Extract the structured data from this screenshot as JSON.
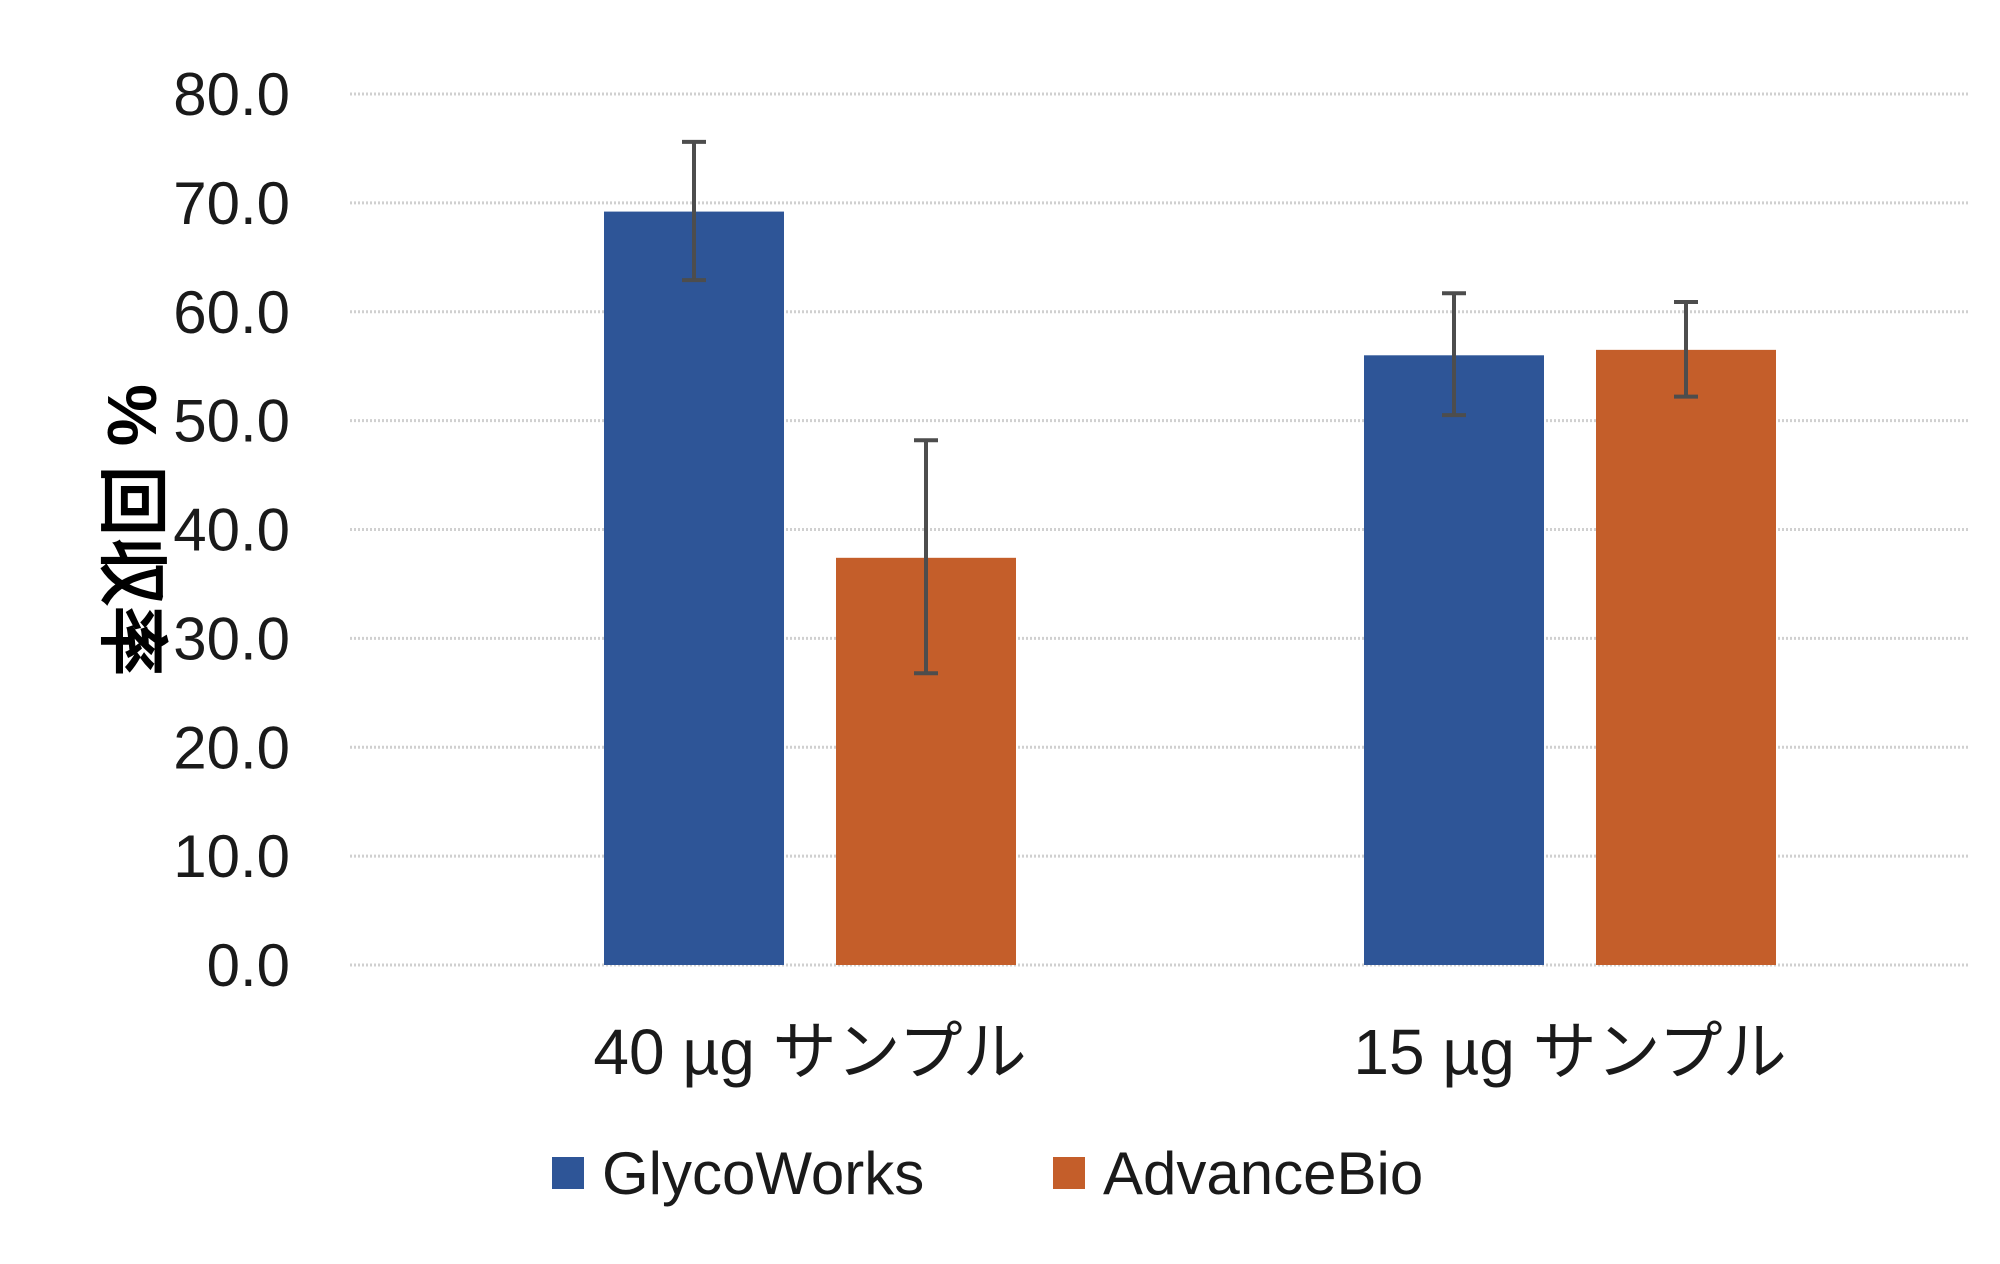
{
  "chart_data": {
    "type": "bar",
    "title": "",
    "xlabel": "",
    "ylabel": "% 回収率",
    "ylim": [
      0,
      80
    ],
    "yticks": [
      0,
      10,
      20,
      30,
      40,
      50,
      60,
      70,
      80
    ],
    "ytick_labels": [
      "0.0",
      "10.0",
      "20.0",
      "30.0",
      "40.0",
      "50.0",
      "60.0",
      "70.0",
      "80.0"
    ],
    "grid": true,
    "legend_position": "bottom",
    "categories": [
      "40 µg サンプル",
      "15 µg サンプル"
    ],
    "series": [
      {
        "name": "GlycoWorks",
        "color": "#2E5597",
        "values": [
          69.2,
          56.0
        ],
        "error_low": [
          62.9,
          50.5
        ],
        "error_high": [
          75.6,
          61.7
        ]
      },
      {
        "name": "AdvanceBio",
        "color": "#C45E2A",
        "values": [
          37.4,
          56.5
        ],
        "error_low": [
          26.8,
          52.2
        ],
        "error_high": [
          48.2,
          60.9
        ]
      }
    ]
  }
}
